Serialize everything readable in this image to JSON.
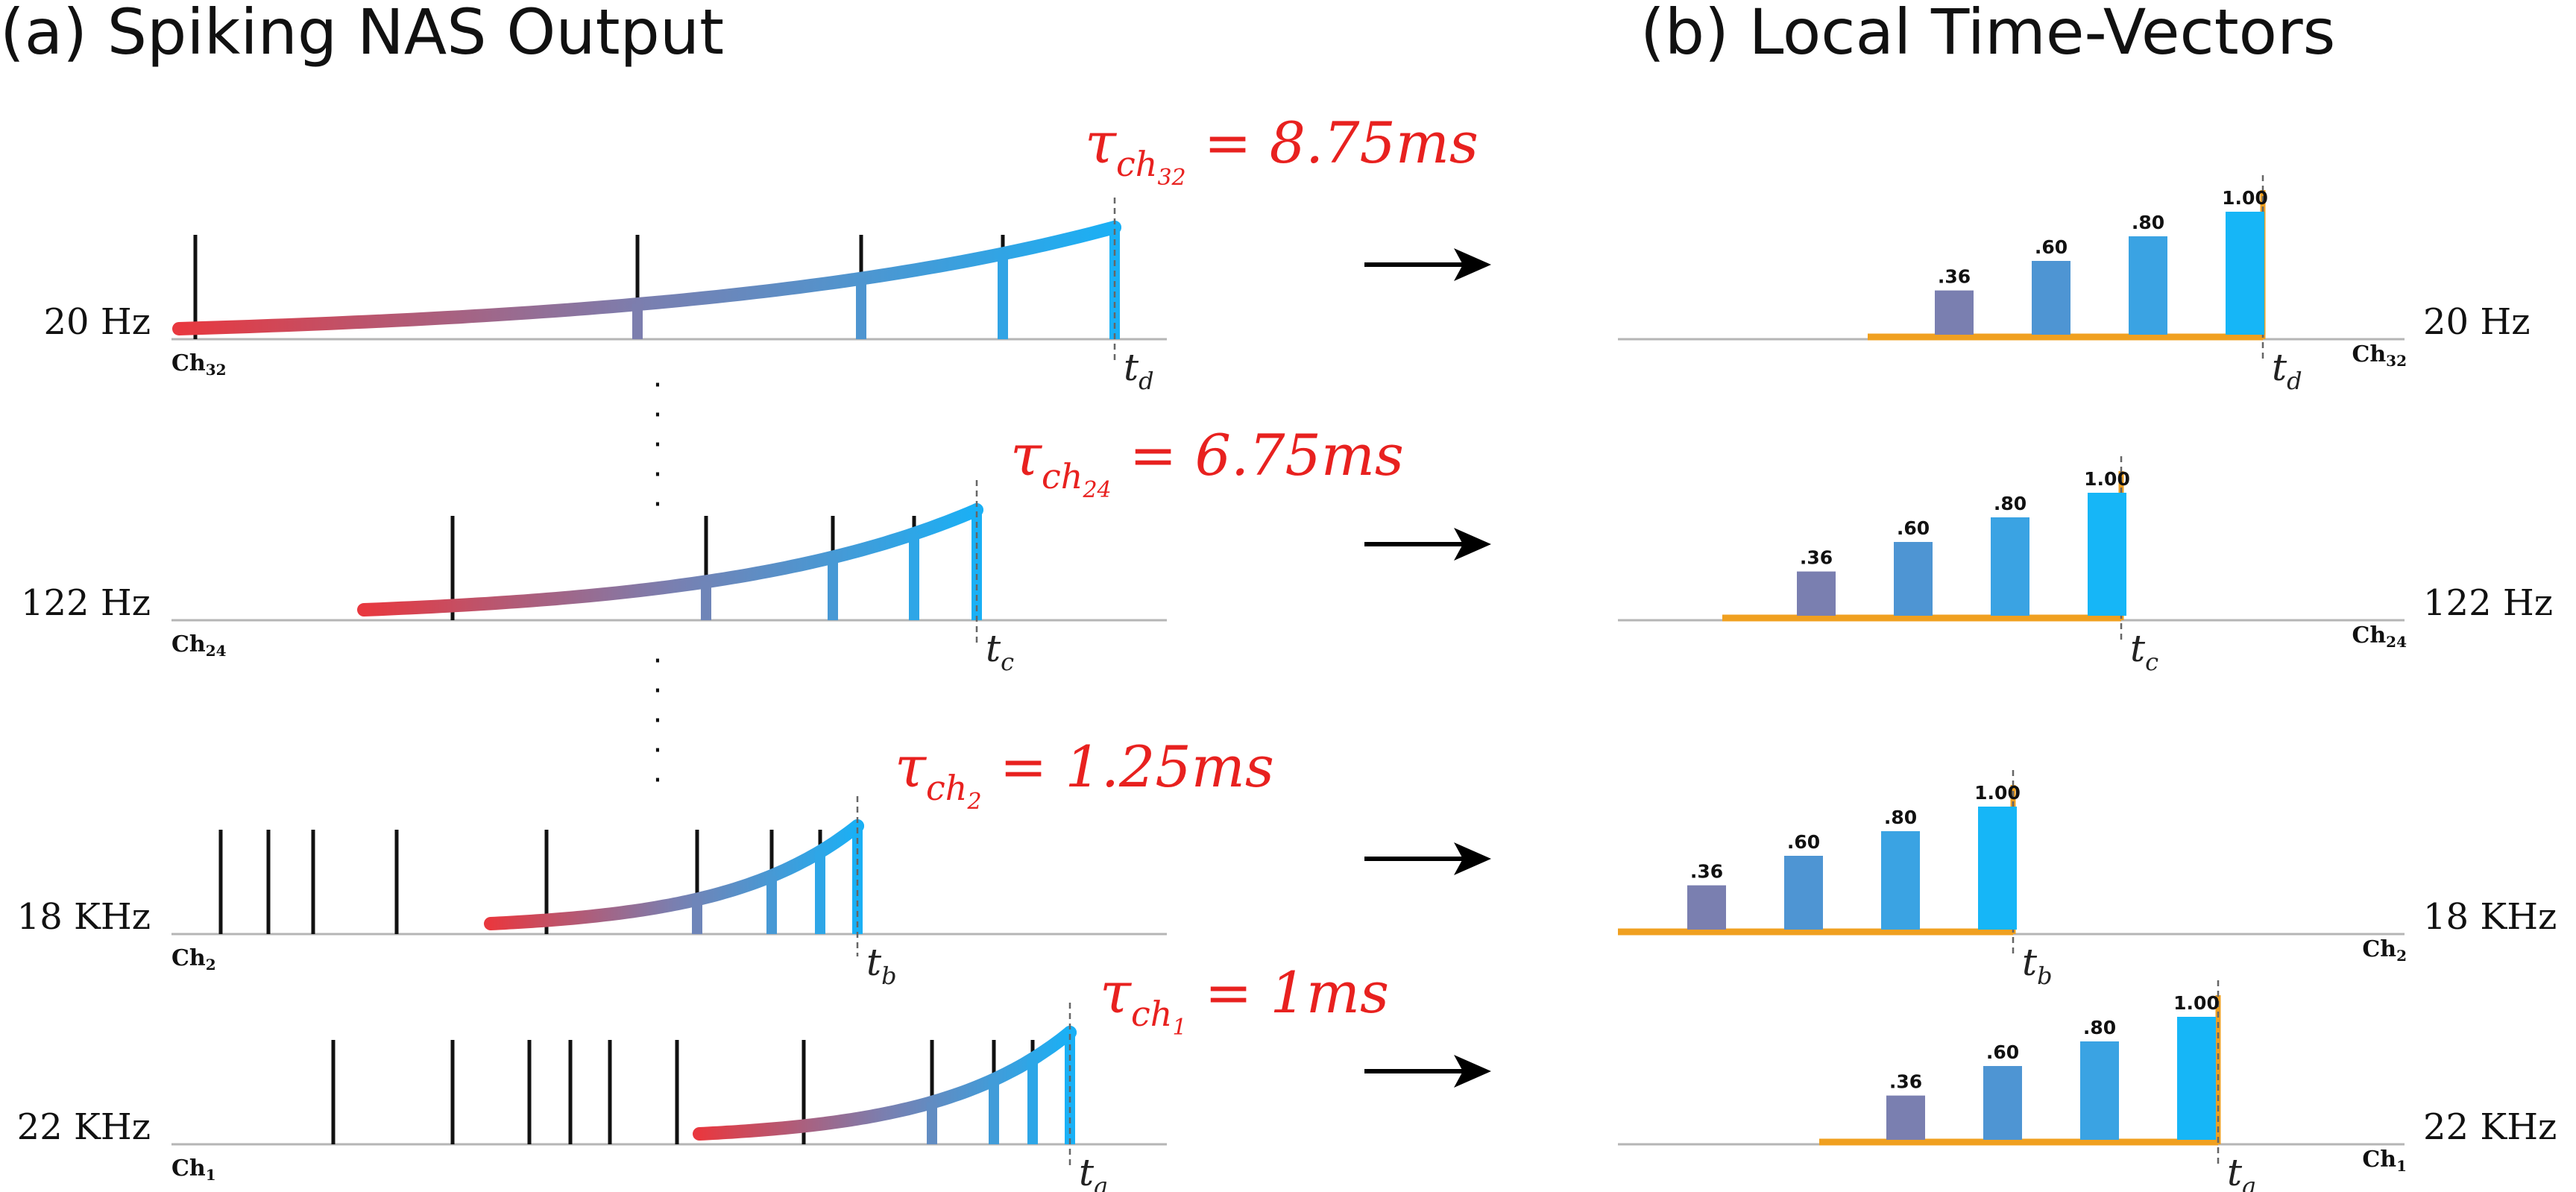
{
  "panel_a": {
    "title": "(a)  Spiking NAS Output"
  },
  "panel_b": {
    "title": "(b)  Local Time-Vectors"
  },
  "colors": {
    "spike": "#111111",
    "tau_text": "#e8211f",
    "decay_start": "#e8383f",
    "decay_end": "#1ab0f5",
    "time_axis": "#f0a020",
    "bars": [
      "#7a7fb0",
      "#4e95d3",
      "#3aa3e3",
      "#16b6f7"
    ]
  },
  "ellipsis": "·",
  "arrow_label": "→",
  "rows": [
    {
      "freq": "20 Hz",
      "ch_main": "Ch",
      "ch_sub": "32",
      "tau_prefix": "τ",
      "tau_sub": "ch",
      "tau_subsub": "32",
      "tau_value": " = 8.75ms",
      "t_main": "t",
      "t_sub": "d",
      "bar_values": [
        ".36",
        ".60",
        ".80",
        "1.00"
      ],
      "bar_heights": [
        0.36,
        0.6,
        0.8,
        1.0
      ]
    },
    {
      "freq": "122 Hz",
      "ch_main": "Ch",
      "ch_sub": "24",
      "tau_prefix": "τ",
      "tau_sub": "ch",
      "tau_subsub": "24",
      "tau_value": " = 6.75ms",
      "t_main": "t",
      "t_sub": "c",
      "bar_values": [
        ".36",
        ".60",
        ".80",
        "1.00"
      ],
      "bar_heights": [
        0.36,
        0.6,
        0.8,
        1.0
      ]
    },
    {
      "freq": "18 KHz",
      "ch_main": "Ch",
      "ch_sub": "2",
      "tau_prefix": "τ",
      "tau_sub": "ch",
      "tau_subsub": "2",
      "tau_value": " = 1.25ms",
      "t_main": "t",
      "t_sub": "b",
      "bar_values": [
        ".36",
        ".60",
        ".80",
        "1.00"
      ],
      "bar_heights": [
        0.36,
        0.6,
        0.8,
        1.0
      ]
    },
    {
      "freq": "22 KHz",
      "ch_main": "Ch",
      "ch_sub": "1",
      "tau_prefix": "τ",
      "tau_sub": "ch",
      "tau_subsub": "1",
      "tau_value": " = 1ms",
      "t_main": "t",
      "t_sub": "a",
      "bar_values": [
        ".36",
        ".60",
        ".80",
        "1.00"
      ],
      "bar_heights": [
        0.36,
        0.6,
        0.8,
        1.0
      ]
    }
  ]
}
